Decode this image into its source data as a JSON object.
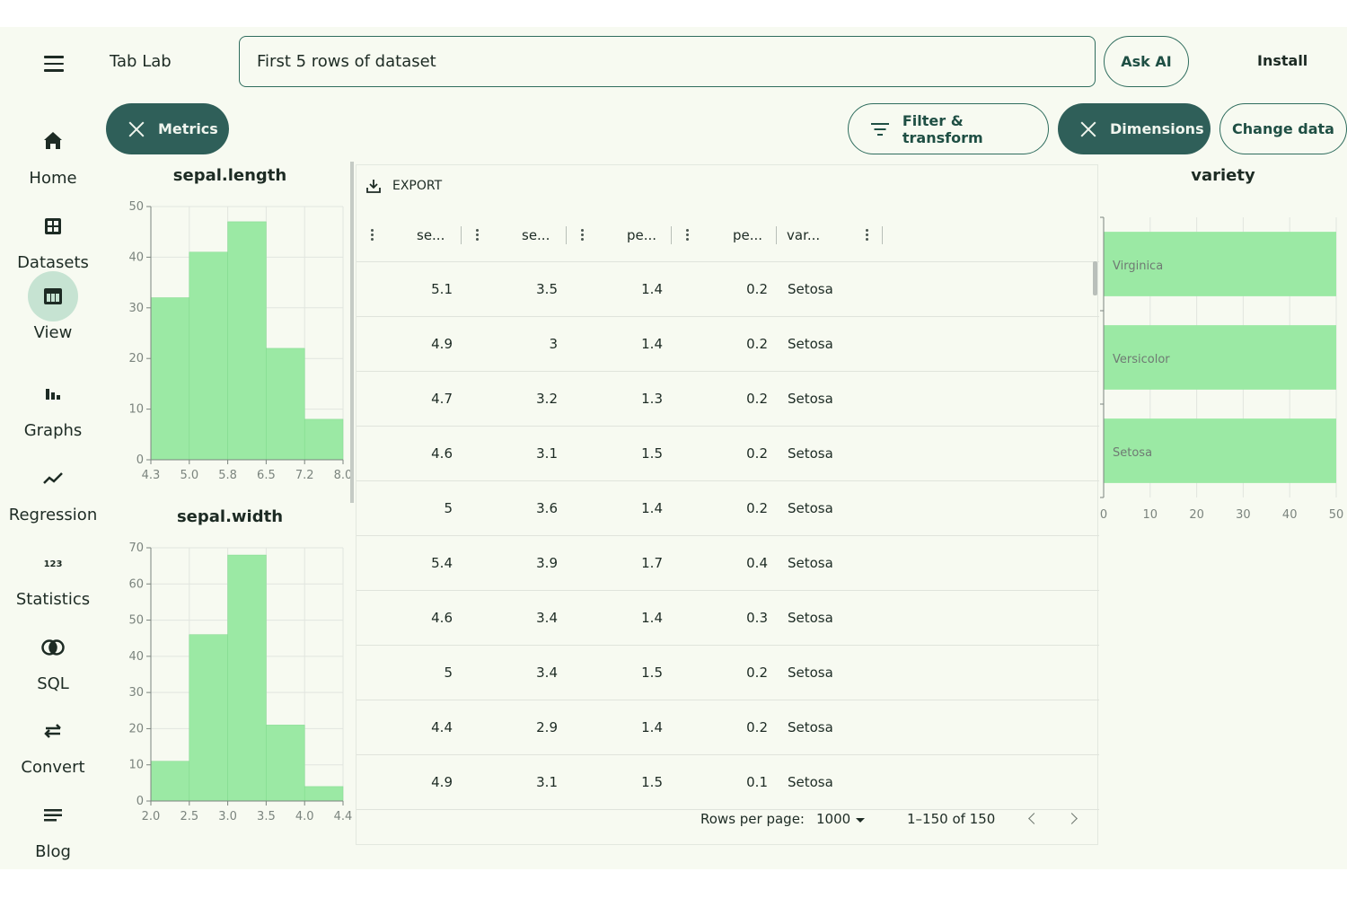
{
  "app": {
    "title": "Tab Lab"
  },
  "query": {
    "value": "First 5 rows of dataset"
  },
  "header": {
    "ask_label": "Ask AI",
    "install_label": "Install"
  },
  "chips": {
    "metrics": "Metrics",
    "filter": "Filter & transform",
    "dimensions": "Dimensions",
    "change_data": "Change data"
  },
  "sidebar": {
    "items": [
      {
        "label": "Home",
        "icon": "home-icon"
      },
      {
        "label": "Datasets",
        "icon": "datasets-icon"
      },
      {
        "label": "View",
        "icon": "table-view-icon",
        "active": true
      },
      {
        "label": "Graphs",
        "icon": "bar-chart-icon"
      },
      {
        "label": "Regression",
        "icon": "trend-line-icon"
      },
      {
        "label": "Statistics",
        "icon": "numbers-123-icon"
      },
      {
        "label": "SQL",
        "icon": "join-circles-icon"
      },
      {
        "label": "Convert",
        "icon": "swap-arrows-icon"
      },
      {
        "label": "Blog",
        "icon": "lines-icon"
      }
    ]
  },
  "table": {
    "export_label": "EXPORT",
    "columns": [
      "se...",
      "se...",
      "pe...",
      "pe...",
      "var..."
    ],
    "rows": [
      [
        "5.1",
        "3.5",
        "1.4",
        "0.2",
        "Setosa"
      ],
      [
        "4.9",
        "3",
        "1.4",
        "0.2",
        "Setosa"
      ],
      [
        "4.7",
        "3.2",
        "1.3",
        "0.2",
        "Setosa"
      ],
      [
        "4.6",
        "3.1",
        "1.5",
        "0.2",
        "Setosa"
      ],
      [
        "5",
        "3.6",
        "1.4",
        "0.2",
        "Setosa"
      ],
      [
        "5.4",
        "3.9",
        "1.7",
        "0.4",
        "Setosa"
      ],
      [
        "4.6",
        "3.4",
        "1.4",
        "0.3",
        "Setosa"
      ],
      [
        "5",
        "3.4",
        "1.5",
        "0.2",
        "Setosa"
      ],
      [
        "4.4",
        "2.9",
        "1.4",
        "0.2",
        "Setosa"
      ],
      [
        "4.9",
        "3.1",
        "1.5",
        "0.1",
        "Setosa"
      ]
    ],
    "footer": {
      "rows_per_page_label": "Rows per page:",
      "rows_per_page_value": "1000",
      "range": "1–150 of 150"
    }
  },
  "colors": {
    "accent": "#2f5f59",
    "bar": "#9be9a4",
    "bar_stroke": "#7fd98c",
    "outline": "#2f6d5e",
    "background": "#f7faf1"
  },
  "chart_data": [
    {
      "type": "bar",
      "title": "sepal.length",
      "x_ticks": [
        "4.3",
        "5.0",
        "5.8",
        "6.5",
        "7.2",
        "8.0"
      ],
      "bins": [
        [
          4.3,
          5.0
        ],
        [
          5.0,
          5.8
        ],
        [
          5.8,
          6.5
        ],
        [
          6.5,
          7.2
        ],
        [
          7.2,
          8.0
        ]
      ],
      "values": [
        32,
        41,
        47,
        22,
        8
      ],
      "y_ticks": [
        0,
        10,
        20,
        30,
        40,
        50
      ],
      "ylim": [
        0,
        50
      ],
      "grid": true
    },
    {
      "type": "bar",
      "title": "sepal.width",
      "x_ticks": [
        "2.0",
        "2.5",
        "3.0",
        "3.5",
        "4.0",
        "4.4"
      ],
      "bins": [
        [
          2.0,
          2.5
        ],
        [
          2.5,
          3.0
        ],
        [
          3.0,
          3.5
        ],
        [
          3.5,
          4.0
        ],
        [
          4.0,
          4.4
        ]
      ],
      "values": [
        11,
        46,
        68,
        21,
        4
      ],
      "y_ticks": [
        0,
        10,
        20,
        30,
        40,
        50,
        60,
        70
      ],
      "ylim": [
        0,
        70
      ],
      "grid": true
    },
    {
      "type": "bar",
      "orientation": "horizontal",
      "title": "variety",
      "categories": [
        "Virginica",
        "Versicolor",
        "Setosa"
      ],
      "values": [
        50,
        50,
        50
      ],
      "x_ticks": [
        0,
        10,
        20,
        30,
        40,
        50
      ],
      "xlim": [
        0,
        50
      ],
      "grid": true
    }
  ]
}
